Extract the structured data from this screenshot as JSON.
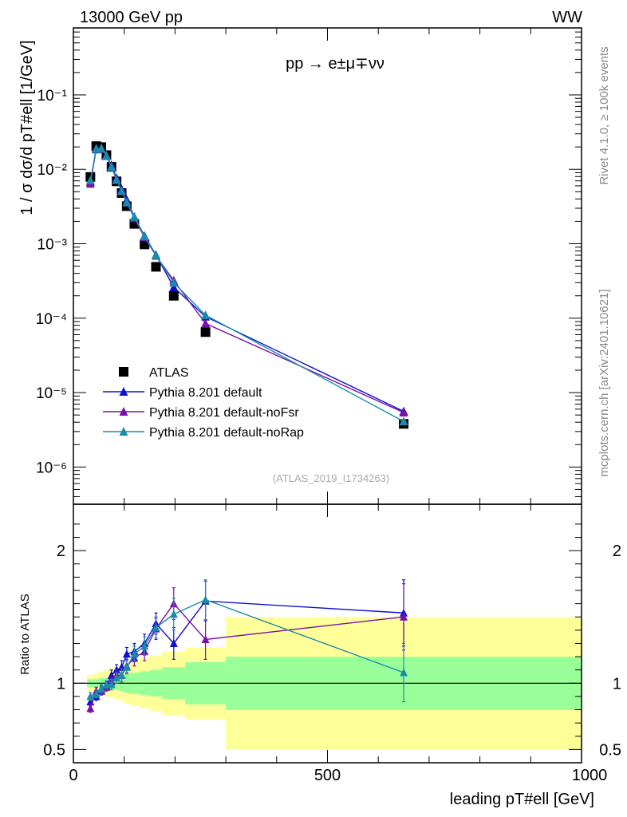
{
  "header": {
    "energy_label": "13000 GeV pp",
    "process_tag": "WW"
  },
  "side_labels": {
    "rivet": "Rivet 4.1.0, ≥ 100k events",
    "mcplots": "mcplots.cern.ch [arXiv:2401.10621]"
  },
  "chart_data": [
    {
      "type": "scatter",
      "scale": "log",
      "title": "pp → e±μ∓νν",
      "ylabel": "1 / σ  dσ/d pT#ell [1/GeV]",
      "watermark": "(ATLAS_2019_I1734263)",
      "xlim": [
        0,
        1000
      ],
      "ylim_exp": [
        -6.5,
        -0.1
      ],
      "ytick_exponents": [
        -6,
        -5,
        -4,
        -3,
        -2,
        -1
      ],
      "ytick_labels": [
        "10⁻⁶",
        "10⁻⁵",
        "10⁻⁴",
        "10⁻³",
        "10⁻²",
        "10⁻¹"
      ],
      "bins": [
        [
          27,
          40
        ],
        [
          40,
          50
        ],
        [
          50,
          60
        ],
        [
          60,
          70
        ],
        [
          70,
          80
        ],
        [
          80,
          90
        ],
        [
          90,
          100
        ],
        [
          100,
          110
        ],
        [
          110,
          130
        ],
        [
          130,
          150
        ],
        [
          150,
          175
        ],
        [
          175,
          220
        ],
        [
          220,
          300
        ],
        [
          300,
          1000
        ]
      ],
      "series": [
        {
          "name": "ATLAS",
          "color": "#000000",
          "marker": "square",
          "x": [
            33.5,
            45,
            55,
            65,
            75,
            85,
            95,
            105,
            120,
            140,
            162.5,
            197.5,
            260,
            650
          ],
          "y": [
            0.0079,
            0.0205,
            0.0199,
            0.0155,
            0.0108,
            0.0069,
            0.0048,
            0.0032,
            0.00185,
            0.00098,
            0.00049,
            0.0002,
            6.5e-05,
            3.8e-06
          ]
        },
        {
          "name": "Pythia 8.201 default",
          "color": "#1010d0",
          "marker": "triangle",
          "x": [
            33.5,
            45,
            55,
            65,
            75,
            85,
            95,
            105,
            120,
            140,
            162.5,
            197.5,
            260,
            650
          ],
          "y": [
            0.0068,
            0.0185,
            0.0189,
            0.0152,
            0.0114,
            0.0076,
            0.0054,
            0.0039,
            0.0023,
            0.00128,
            0.00071,
            0.00026,
            0.000105,
            5.6e-06
          ]
        },
        {
          "name": "Pythia 8.201 default-noFsr",
          "color": "#7a10aa",
          "marker": "triangle",
          "x": [
            33.5,
            45,
            55,
            65,
            75,
            85,
            95,
            105,
            120,
            140,
            162.5,
            197.5,
            260,
            650
          ],
          "y": [
            0.0064,
            0.0192,
            0.0187,
            0.0151,
            0.0109,
            0.0073,
            0.0051,
            0.0036,
            0.0022,
            0.00122,
            0.00069,
            0.00032,
            8.5e-05,
            5.4e-06
          ]
        },
        {
          "name": "Pythia 8.201 default-noRap",
          "color": "#1a8caa",
          "marker": "triangle",
          "x": [
            33.5,
            45,
            55,
            65,
            75,
            85,
            95,
            105,
            120,
            140,
            162.5,
            197.5,
            260,
            650
          ],
          "y": [
            0.0071,
            0.0188,
            0.0192,
            0.0153,
            0.0107,
            0.0072,
            0.0051,
            0.0036,
            0.0023,
            0.00126,
            0.0007,
            0.0003,
            0.00011,
            4.1e-06
          ]
        }
      ],
      "legend_position": "lower-left"
    },
    {
      "type": "scatter",
      "scale": "linear",
      "ylabel": "Ratio to ATLAS",
      "xlabel": "leading pT#ell [GeV]",
      "xlim": [
        0,
        1000
      ],
      "ylim": [
        0.4,
        2.35
      ],
      "xticks": [
        0,
        500,
        1000
      ],
      "xtick_labels": [
        "0",
        "500",
        "1000"
      ],
      "yticks": [
        0.5,
        1,
        2
      ],
      "ytick_labels": [
        "0.5",
        "1",
        "2"
      ],
      "bands": {
        "yellow_color": "#ffff99",
        "green_color": "#99ff99",
        "yellow_half_width": [
          0.06,
          0.07,
          0.09,
          0.1,
          0.11,
          0.12,
          0.13,
          0.15,
          0.17,
          0.19,
          0.21,
          0.24,
          0.27,
          0.5
        ],
        "green_half_width": [
          0.03,
          0.03,
          0.04,
          0.04,
          0.05,
          0.05,
          0.06,
          0.07,
          0.08,
          0.09,
          0.1,
          0.12,
          0.16,
          0.2
        ]
      },
      "series": [
        {
          "name": "Pythia 8.201 default",
          "color": "#1010d0",
          "x": [
            33.5,
            45,
            55,
            65,
            75,
            85,
            95,
            105,
            120,
            140,
            162.5,
            197.5,
            260,
            650
          ],
          "y": [
            0.86,
            0.9,
            0.95,
            0.98,
            1.06,
            1.1,
            1.12,
            1.22,
            1.24,
            1.3,
            1.45,
            1.3,
            1.62,
            1.53
          ],
          "err": [
            0.03,
            0.03,
            0.03,
            0.03,
            0.04,
            0.04,
            0.05,
            0.05,
            0.06,
            0.07,
            0.08,
            0.12,
            0.15,
            0.25
          ]
        },
        {
          "name": "Pythia 8.201 default-noFsr",
          "color": "#7a10aa",
          "x": [
            33.5,
            45,
            55,
            65,
            75,
            85,
            95,
            105,
            120,
            140,
            162.5,
            197.5,
            260,
            650
          ],
          "y": [
            0.81,
            0.94,
            0.94,
            0.97,
            1.01,
            1.06,
            1.06,
            1.13,
            1.19,
            1.24,
            1.41,
            1.6,
            1.33,
            1.5
          ],
          "err": [
            0.03,
            0.03,
            0.03,
            0.03,
            0.04,
            0.04,
            0.05,
            0.05,
            0.06,
            0.07,
            0.08,
            0.12,
            0.15,
            0.25
          ]
        },
        {
          "name": "Pythia 8.201 default-noRap",
          "color": "#1a8caa",
          "x": [
            33.5,
            45,
            55,
            65,
            75,
            85,
            95,
            105,
            120,
            140,
            162.5,
            197.5,
            260,
            650
          ],
          "y": [
            0.9,
            0.92,
            0.96,
            0.99,
            0.99,
            1.04,
            1.06,
            1.12,
            1.22,
            1.28,
            1.42,
            1.52,
            1.63,
            1.08
          ],
          "err": [
            0.03,
            0.03,
            0.03,
            0.03,
            0.04,
            0.04,
            0.05,
            0.05,
            0.06,
            0.07,
            0.08,
            0.12,
            0.15,
            0.22
          ]
        }
      ]
    }
  ]
}
